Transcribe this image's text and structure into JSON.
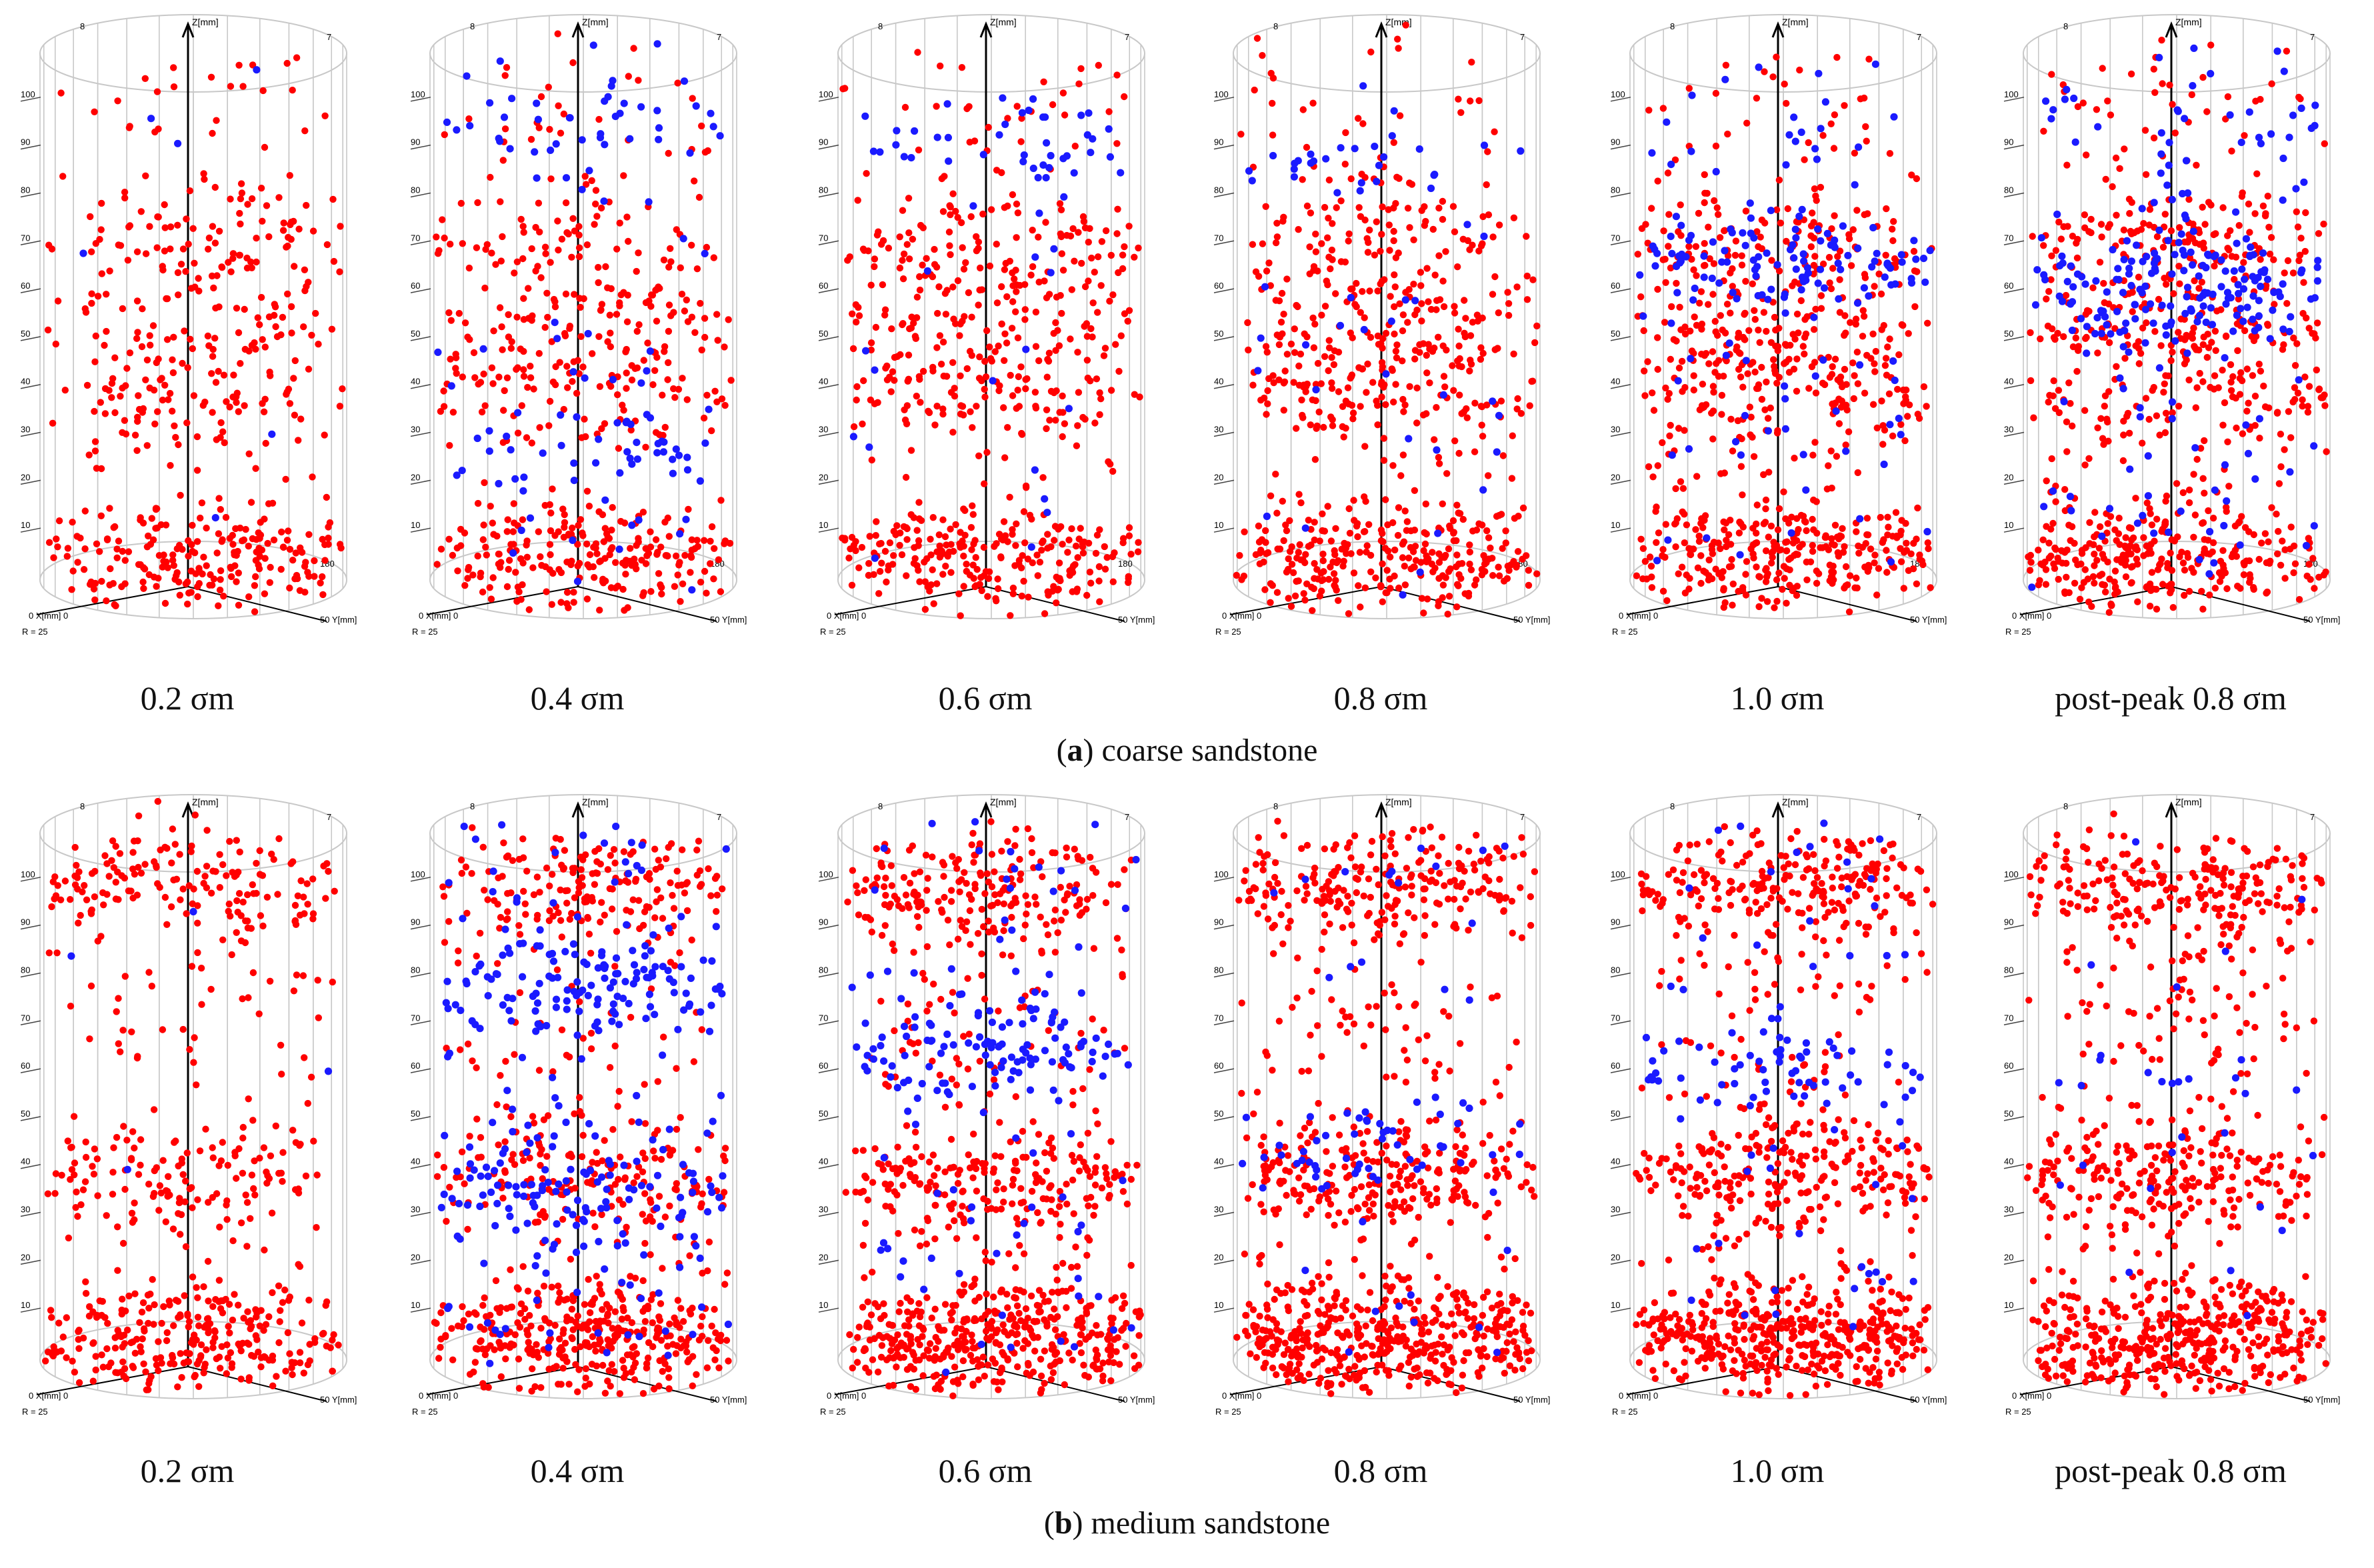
{
  "colors": {
    "ae_red": "#ff0000",
    "ae_blue": "#1a1aff",
    "grid": "#c8c8c8",
    "axis": "#000000"
  },
  "chart_data": [
    {
      "type": "scatter",
      "projection": "3d-cylinder",
      "row_label_letter": "a",
      "row_label_text": "coarse sandstone",
      "axes": {
        "z_label": "Z[mm]",
        "x_label": "X[mm]",
        "y_label": "Y[mm]",
        "z_ticks": [
          "10",
          "20",
          "30",
          "40",
          "50",
          "60",
          "70",
          "80",
          "90",
          "100"
        ],
        "radius_label": "R = 25",
        "corner_labels": {
          "top_left": "8",
          "top_right": "7",
          "bottom_right": "180",
          "x_origin": "0",
          "y_end": "50"
        },
        "zlim": [
          0,
          110
        ]
      },
      "series": [
        {
          "name": "red",
          "color": "#ff0000"
        },
        {
          "name": "blue",
          "color": "#1a1aff"
        }
      ],
      "panels": [
        {
          "caption": "0.2 σm",
          "red_count": 520,
          "blue_count": 6,
          "red_bands": [
            0.04,
            0.35,
            0.48,
            0.63
          ],
          "blue_bands": []
        },
        {
          "caption": "0.4 σm",
          "red_count": 540,
          "blue_count": 120,
          "red_bands": [
            0.04,
            0.35,
            0.48,
            0.63
          ],
          "blue_bands": [
            0.85,
            0.25
          ]
        },
        {
          "caption": "0.6 σm",
          "red_count": 620,
          "blue_count": 60,
          "red_bands": [
            0.04,
            0.35,
            0.48,
            0.63
          ],
          "blue_bands": [
            0.82
          ]
        },
        {
          "caption": "0.8 σm",
          "red_count": 700,
          "blue_count": 55,
          "red_bands": [
            0.04,
            0.35,
            0.48,
            0.63
          ],
          "blue_bands": [
            0.8
          ]
        },
        {
          "caption": "1.0 σm",
          "red_count": 760,
          "blue_count": 170,
          "red_bands": [
            0.04,
            0.35,
            0.48,
            0.63
          ],
          "blue_bands": [
            0.6
          ]
        },
        {
          "caption": "post-peak 0.8 σm",
          "red_count": 760,
          "blue_count": 260,
          "red_bands": [
            0.04,
            0.35,
            0.48,
            0.63
          ],
          "blue_bands": [
            0.55
          ]
        }
      ]
    },
    {
      "type": "scatter",
      "projection": "3d-cylinder",
      "row_label_letter": "b",
      "row_label_text": "medium sandstone",
      "axes": {
        "z_label": "Z[mm]",
        "x_label": "X[mm]",
        "y_label": "Y[mm]",
        "z_ticks": [
          "10",
          "20",
          "30",
          "40",
          "50",
          "60",
          "70",
          "80",
          "90",
          "100"
        ],
        "radius_label": "R = 25",
        "corner_labels": {
          "top_left": "8",
          "top_right": "7",
          "bottom_right": "",
          "x_origin": "0",
          "y_end": "50"
        },
        "zlim": [
          0,
          110
        ]
      },
      "series": [
        {
          "name": "red",
          "color": "#ff0000"
        },
        {
          "name": "blue",
          "color": "#1a1aff"
        }
      ],
      "panels": [
        {
          "caption": "0.2 σm",
          "red_count": 620,
          "blue_count": 4,
          "red_bands": [
            0.04,
            0.35,
            0.9
          ],
          "blue_bands": []
        },
        {
          "caption": "0.4 σm",
          "red_count": 760,
          "blue_count": 330,
          "red_bands": [
            0.04,
            0.35,
            0.9
          ],
          "blue_bands": [
            0.3,
            0.7
          ]
        },
        {
          "caption": "0.6 σm",
          "red_count": 900,
          "blue_count": 180,
          "red_bands": [
            0.04,
            0.35,
            0.9
          ],
          "blue_bands": [
            0.6
          ]
        },
        {
          "caption": "0.8 σm",
          "red_count": 980,
          "blue_count": 80,
          "red_bands": [
            0.04,
            0.35,
            0.9
          ],
          "blue_bands": [
            0.4
          ]
        },
        {
          "caption": "1.0 σm",
          "red_count": 980,
          "blue_count": 110,
          "red_bands": [
            0.04,
            0.35,
            0.9
          ],
          "blue_bands": [
            0.55
          ]
        },
        {
          "caption": "post-peak 0.8 σm",
          "red_count": 960,
          "blue_count": 30,
          "red_bands": [
            0.04,
            0.35,
            0.9
          ],
          "blue_bands": [
            0.5
          ]
        }
      ]
    }
  ]
}
